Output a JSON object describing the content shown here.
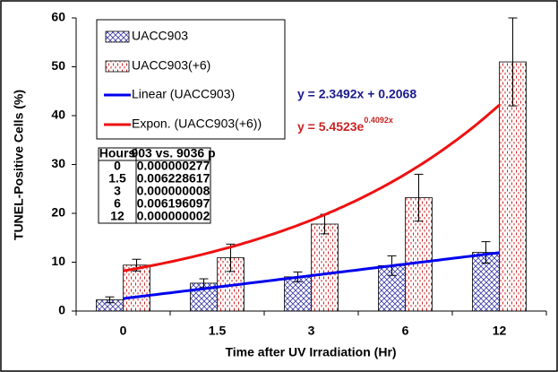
{
  "chart_data": {
    "type": "bar",
    "y_label": "TUNEL-Positive Cells (%)",
    "x_label": "Time after UV Irradiation (Hr)",
    "categories": [
      "0",
      "1.5",
      "3",
      "6",
      "12"
    ],
    "series": [
      {
        "name": "UACC903",
        "color": "#3a3aa8",
        "pattern": "crosshatch",
        "values": [
          2.3,
          5.7,
          7,
          9.3,
          12
        ],
        "errors": [
          0.6,
          0.9,
          1,
          2,
          2.2
        ]
      },
      {
        "name": "UACC903(+6)",
        "color": "#cc2222",
        "pattern": "dashes",
        "values": [
          9.4,
          10.9,
          17.8,
          23.2,
          51
        ],
        "errors": [
          1.2,
          2.8,
          2,
          4.8,
          9
        ]
      }
    ],
    "trendlines": [
      {
        "name": "Linear (UACC903)",
        "color": "#0000ee",
        "fit": "linear",
        "a": 2.3492,
        "b": 0.2068,
        "equation": "y = 2.3492x + 0.2068"
      },
      {
        "name": "Expon. (UACC903(+6))",
        "color": "#ee1111",
        "fit": "exponential",
        "a": 5.4523,
        "b": 0.4092,
        "equation": "y = 5.4523e",
        "equation_exponent": "0.4092x"
      }
    ],
    "ylim": [
      0,
      60
    ],
    "yticks": [
      0,
      10,
      20,
      30,
      40,
      50,
      60
    ],
    "table": {
      "header": [
        "Hours",
        "903 vs. 9036 p"
      ],
      "rows": [
        [
          "0",
          "0.000000277"
        ],
        [
          "1.5",
          "0.006228617"
        ],
        [
          "3",
          "0.000000008"
        ],
        [
          "6",
          "0.006196097"
        ],
        [
          "12",
          "0.000000002"
        ]
      ]
    }
  }
}
